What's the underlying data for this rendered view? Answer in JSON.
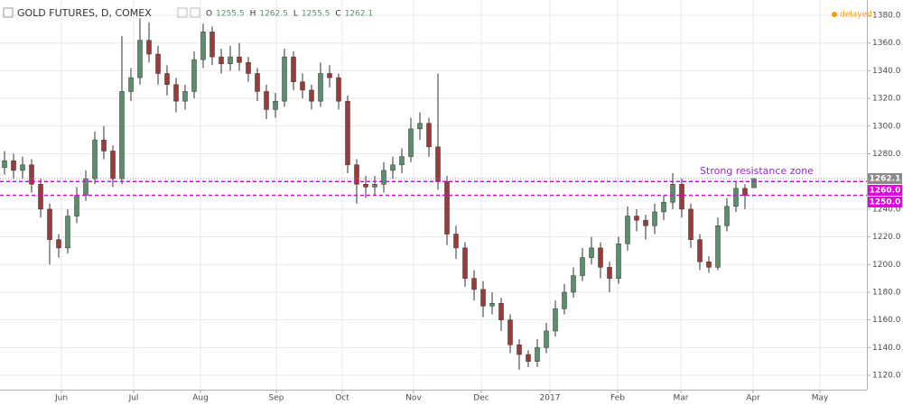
{
  "chart_data": {
    "type": "candlestick",
    "title": "GOLD FUTURES, D, COMEX",
    "ohlc_labels": [
      "O",
      "H",
      "L",
      "C"
    ],
    "status": "delayed",
    "annotation": "Strong resistance zone",
    "up_color": "#5a8f6c",
    "down_color": "#9c3a3a",
    "grid": true,
    "open": [
      1270,
      1275,
      1268,
      1272,
      1258,
      1240,
      1218,
      1212,
      1235,
      1250,
      1262,
      1290,
      1282,
      1262,
      1325,
      1335,
      1362,
      1352,
      1338,
      1330,
      1318,
      1325,
      1348,
      1368,
      1350,
      1345,
      1350,
      1346,
      1338,
      1325,
      1312,
      1318,
      1350,
      1332,
      1326,
      1318,
      1338,
      1335,
      1318,
      1272,
      1258,
      1256,
      1258,
      1268,
      1272,
      1278,
      1298,
      1302,
      1285,
      1260,
      1222,
      1212,
      1190,
      1182,
      1170,
      1172,
      1160,
      1142,
      1135,
      1130,
      1140,
      1152,
      1168,
      1180,
      1192,
      1205,
      1212,
      1198,
      1190,
      1215,
      1235,
      1232,
      1228,
      1238,
      1245,
      1258,
      1240,
      1218,
      1202,
      1198,
      1228,
      1242,
      1255,
      1255.5
    ],
    "high": [
      1282,
      1280,
      1278,
      1276,
      1262,
      1244,
      1222,
      1240,
      1256,
      1268,
      1296,
      1300,
      1286,
      1365,
      1342,
      1378,
      1375,
      1358,
      1344,
      1335,
      1330,
      1354,
      1374,
      1372,
      1356,
      1358,
      1360,
      1350,
      1342,
      1330,
      1324,
      1356,
      1354,
      1338,
      1330,
      1346,
      1344,
      1338,
      1322,
      1276,
      1264,
      1264,
      1274,
      1278,
      1284,
      1306,
      1310,
      1306,
      1338,
      1264,
      1228,
      1216,
      1196,
      1188,
      1180,
      1176,
      1164,
      1146,
      1138,
      1146,
      1158,
      1174,
      1186,
      1198,
      1212,
      1220,
      1216,
      1202,
      1220,
      1242,
      1240,
      1236,
      1244,
      1250,
      1266,
      1262,
      1244,
      1222,
      1206,
      1234,
      1248,
      1260,
      1258,
      1262.5
    ],
    "low": [
      1265,
      1262,
      1262,
      1252,
      1234,
      1200,
      1205,
      1208,
      1230,
      1246,
      1258,
      1276,
      1256,
      1258,
      1318,
      1330,
      1346,
      1330,
      1322,
      1310,
      1312,
      1320,
      1342,
      1344,
      1338,
      1340,
      1340,
      1332,
      1318,
      1305,
      1306,
      1314,
      1326,
      1320,
      1312,
      1314,
      1328,
      1312,
      1266,
      1244,
      1248,
      1250,
      1252,
      1262,
      1266,
      1274,
      1290,
      1278,
      1254,
      1214,
      1204,
      1184,
      1174,
      1162,
      1164,
      1152,
      1136,
      1124,
      1126,
      1126,
      1136,
      1148,
      1164,
      1176,
      1188,
      1200,
      1190,
      1180,
      1186,
      1210,
      1224,
      1218,
      1222,
      1232,
      1240,
      1234,
      1212,
      1196,
      1194,
      1196,
      1224,
      1238,
      1240,
      1255.5
    ],
    "close": [
      1275,
      1268,
      1272,
      1258,
      1240,
      1218,
      1212,
      1235,
      1250,
      1262,
      1290,
      1282,
      1262,
      1325,
      1335,
      1362,
      1352,
      1338,
      1330,
      1318,
      1325,
      1348,
      1368,
      1350,
      1345,
      1350,
      1346,
      1338,
      1325,
      1312,
      1318,
      1350,
      1332,
      1326,
      1318,
      1338,
      1335,
      1318,
      1272,
      1258,
      1256,
      1258,
      1268,
      1272,
      1278,
      1298,
      1302,
      1285,
      1260,
      1222,
      1212,
      1190,
      1182,
      1170,
      1172,
      1160,
      1142,
      1135,
      1130,
      1140,
      1152,
      1168,
      1180,
      1192,
      1205,
      1212,
      1198,
      1190,
      1215,
      1235,
      1232,
      1228,
      1238,
      1245,
      1258,
      1240,
      1218,
      1202,
      1198,
      1228,
      1242,
      1255,
      1250,
      1262.1
    ],
    "xlim": [
      -0.5,
      95.5
    ],
    "xticks": [
      {
        "value": 6.3,
        "label": "Jun"
      },
      {
        "value": 14.3,
        "label": "Jul"
      },
      {
        "value": 21.7,
        "label": "Aug"
      },
      {
        "value": 30.1,
        "label": "Sep"
      },
      {
        "value": 37.4,
        "label": "Oct"
      },
      {
        "value": 45.3,
        "label": "Nov"
      },
      {
        "value": 52.8,
        "label": "Dec"
      },
      {
        "value": 60.4,
        "label": "2017"
      },
      {
        "value": 67.9,
        "label": "Feb"
      },
      {
        "value": 74.9,
        "label": "Mar"
      },
      {
        "value": 82.9,
        "label": "Apr"
      },
      {
        "value": 90.3,
        "label": "May"
      }
    ],
    "ylim": [
      1109.6,
      1391.1
    ],
    "yticks": [
      {
        "value": 1120,
        "label": "1120.0"
      },
      {
        "value": 1140,
        "label": "1140.0"
      },
      {
        "value": 1160,
        "label": "1160.0"
      },
      {
        "value": 1180,
        "label": "1180.0"
      },
      {
        "value": 1200,
        "label": "1200.0"
      },
      {
        "value": 1220,
        "label": "1220.0"
      },
      {
        "value": 1240,
        "label": "1240.0"
      },
      {
        "value": 1260,
        "label": "1260.0"
      },
      {
        "value": 1280,
        "label": "1280.0"
      },
      {
        "value": 1300,
        "label": "1300.0"
      },
      {
        "value": 1320,
        "label": "1320.0"
      },
      {
        "value": 1340,
        "label": "1340.0"
      },
      {
        "value": 1360,
        "label": "1360.0"
      },
      {
        "value": 1380,
        "label": "1380.0"
      }
    ],
    "levels": [
      {
        "value": 1260,
        "label": "1260.0",
        "color": "#e000e0"
      },
      {
        "value": 1250,
        "label": "1250.0",
        "color": "#e000e0"
      }
    ]
  }
}
